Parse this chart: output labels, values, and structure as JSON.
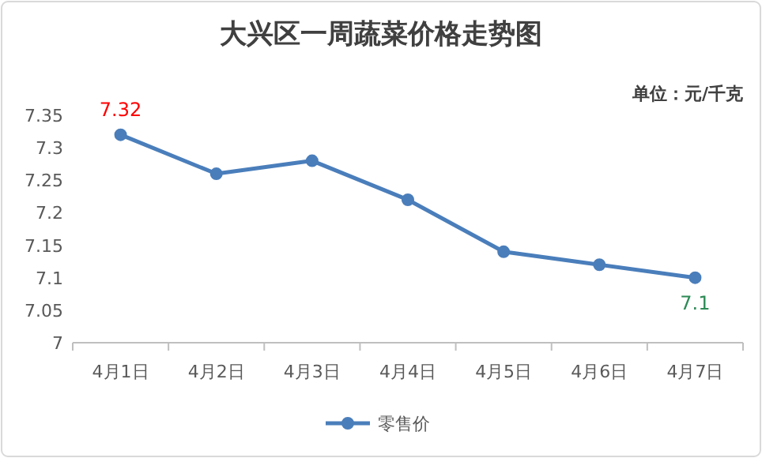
{
  "chart_data": {
    "type": "line",
    "title": "大兴区一周蔬菜价格走势图",
    "annotations": [
      "单位：元/千克"
    ],
    "categories": [
      "4月1日",
      "4月2日",
      "4月3日",
      "4月4日",
      "4月5日",
      "4月6日",
      "4月7日"
    ],
    "series": [
      {
        "name": "零售价",
        "color": "#4a7ebb",
        "values": [
          7.32,
          7.26,
          7.28,
          7.22,
          7.14,
          7.12,
          7.1
        ],
        "value_labels": [
          "7.32",
          null,
          null,
          null,
          null,
          null,
          "7.1"
        ]
      }
    ],
    "ylim": [
      7,
      7.35
    ],
    "yticks": [
      7,
      7.05,
      7.1,
      7.15,
      7.2,
      7.25,
      7.3,
      7.35
    ],
    "marker": "circle",
    "legend": "bottom",
    "grid": false
  }
}
